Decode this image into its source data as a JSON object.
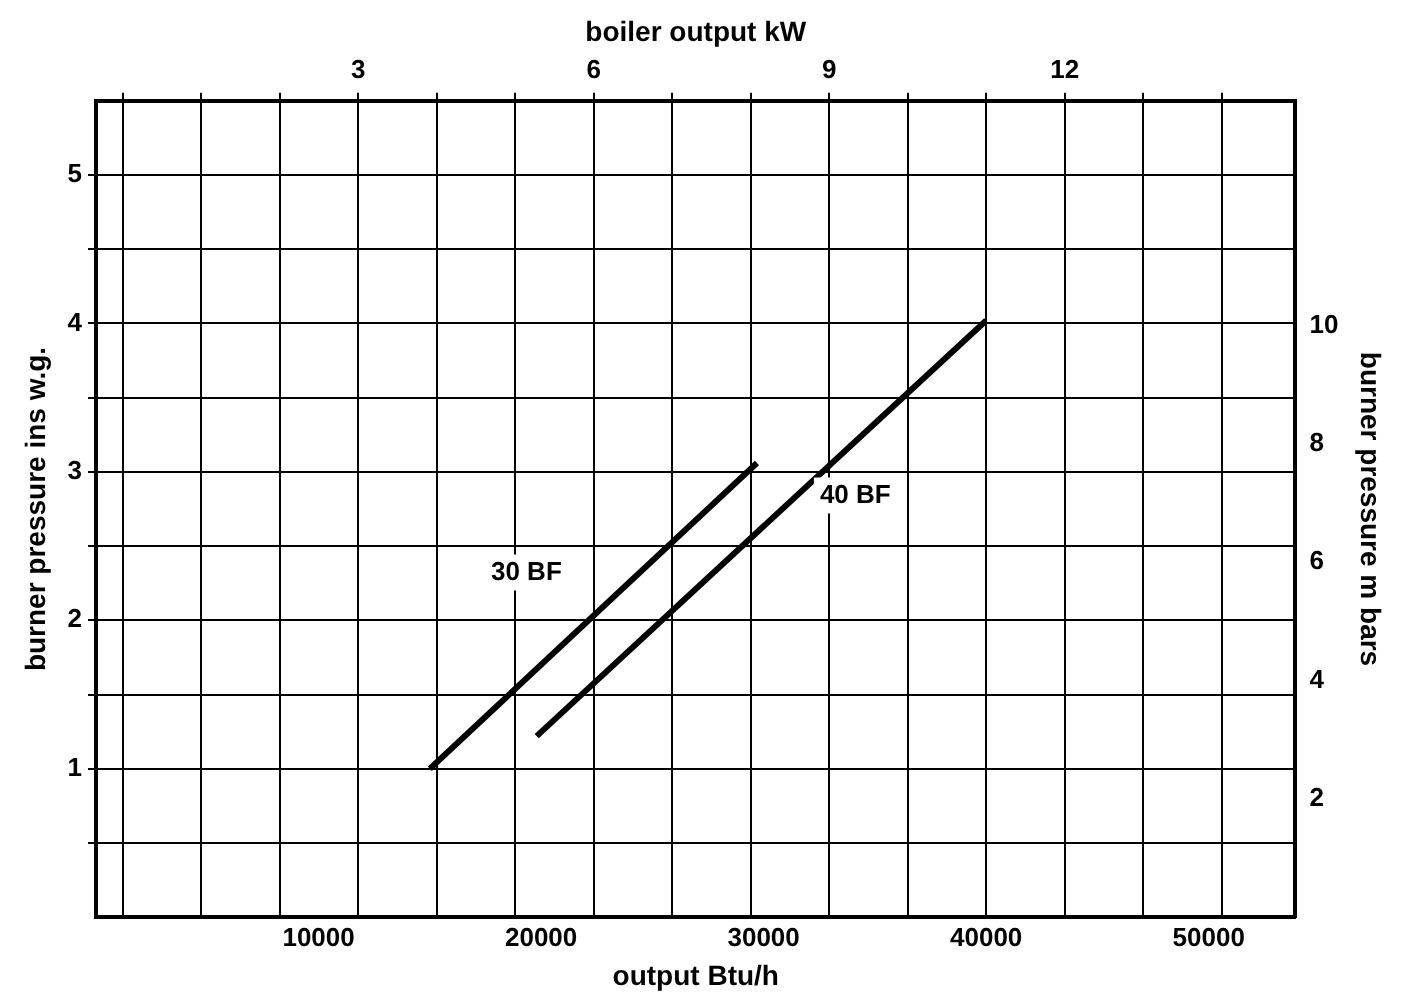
{
  "chart_data": {
    "type": "line",
    "xlabel": "output Btu/h",
    "ylabel": "burner pressure ins w.g.",
    "y2label": "burner pressure m bars",
    "x2label": "boiler output kW",
    "xlim": [
      0,
      53900
    ],
    "xticks": [
      10000,
      20000,
      30000,
      40000,
      50000
    ],
    "x2lim": [
      -0.34,
      14.94
    ],
    "x2ticks": [
      {
        "value": 0,
        "label": null
      },
      {
        "value": 1,
        "label": null
      },
      {
        "value": 2,
        "label": null
      },
      3,
      {
        "value": 4,
        "label": null
      },
      {
        "value": 5,
        "label": null
      },
      6,
      {
        "value": 7,
        "label": null
      },
      {
        "value": 8,
        "label": null
      },
      9,
      {
        "value": 10,
        "label": null
      },
      {
        "value": 11,
        "label": null
      },
      12,
      {
        "value": 13,
        "label": null
      },
      {
        "value": 14,
        "label": null
      }
    ],
    "ylim": [
      0,
      5.5
    ],
    "yticks": [
      {
        "value": 0.5,
        "label": null
      },
      1,
      {
        "value": 1.5,
        "label": null
      },
      2,
      {
        "value": 2.5,
        "label": null
      },
      3,
      {
        "value": 3.5,
        "label": null
      },
      4,
      {
        "value": 4.5,
        "label": null
      },
      5
    ],
    "y2lim": [
      0,
      13.8
    ],
    "y2ticks": [
      2,
      4,
      6,
      8,
      10
    ],
    "grid": true,
    "legend": false,
    "marker": "none",
    "line_style": "solid",
    "series": [
      {
        "name": "30 BF",
        "color": "#000000",
        "x": [
          15000,
          29700
        ],
        "values": [
          1.0,
          3.06
        ]
      },
      {
        "name": "40 BF",
        "color": "#000000",
        "x": [
          19800,
          40000
        ],
        "values": [
          1.22,
          4.02
        ]
      }
    ]
  }
}
